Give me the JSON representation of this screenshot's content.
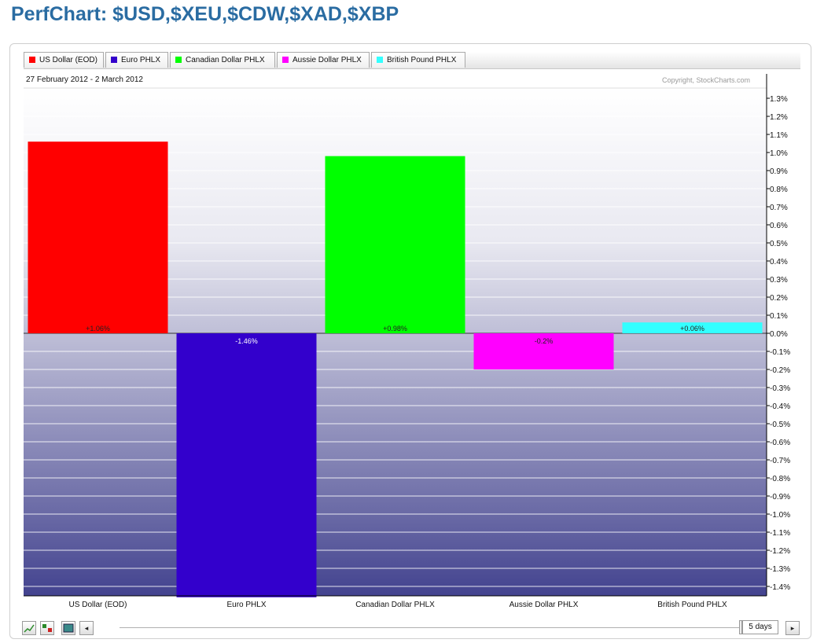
{
  "header": {
    "title": "PerfChart: $USD,$XEU,$CDW,$XAD,$XBP"
  },
  "legend": [
    {
      "label": "US Dollar (EOD)",
      "color": "#ff0000"
    },
    {
      "label": "Euro PHLX",
      "color": "#3300cc"
    },
    {
      "label": "Canadian Dollar PHLX",
      "color": "#00ff00"
    },
    {
      "label": "Aussie Dollar PHLX",
      "color": "#ff00ff"
    },
    {
      "label": "British Pound PHLX",
      "color": "#33ffff"
    }
  ],
  "chart_info": {
    "date_range": "27 February 2012 - 2 March 2012",
    "copyright": "Copyright, StockCharts.com"
  },
  "chart_data": {
    "type": "bar",
    "categories": [
      "US Dollar (EOD)",
      "Euro PHLX",
      "Canadian Dollar PHLX",
      "Aussie Dollar PHLX",
      "British Pound PHLX"
    ],
    "values": [
      1.06,
      -1.46,
      0.98,
      -0.2,
      0.06
    ],
    "data_labels": [
      "+1.06%",
      "-1.46%",
      "+0.98%",
      "-0.2%",
      "+0.06%"
    ],
    "colors": [
      "#ff0000",
      "#3300cc",
      "#00ff00",
      "#ff00ff",
      "#33ffff"
    ],
    "y_ticks": [
      1.3,
      1.2,
      1.1,
      1.0,
      0.9,
      0.8,
      0.7,
      0.6,
      0.5,
      0.4,
      0.3,
      0.2,
      0.1,
      0.0,
      -0.1,
      -0.2,
      -0.3,
      -0.4,
      -0.5,
      -0.6,
      -0.7,
      -0.8,
      -0.9,
      -1.0,
      -1.1,
      -1.2,
      -1.3,
      -1.4
    ],
    "y_tick_labels": [
      "1.3%",
      "1.2%",
      "1.1%",
      "1.0%",
      "0.9%",
      "0.8%",
      "0.7%",
      "0.6%",
      "0.5%",
      "0.4%",
      "0.3%",
      "0.2%",
      "0.1%",
      "0.0%",
      "-0.1%",
      "-0.2%",
      "-0.3%",
      "-0.4%",
      "-0.5%",
      "-0.6%",
      "-0.7%",
      "-0.8%",
      "-0.9%",
      "-1.0%",
      "-1.1%",
      "-1.2%",
      "-1.3%",
      "-1.4%"
    ],
    "ylim": [
      -1.46,
      1.4
    ],
    "grid": true,
    "y_axis_side": "right"
  },
  "controls": {
    "chart_type_icons": [
      "line-chart-icon",
      "bar-chart-icon",
      "histogram-icon"
    ],
    "period": "5 days",
    "left_arrow": "◂",
    "right_arrow": "▸"
  }
}
